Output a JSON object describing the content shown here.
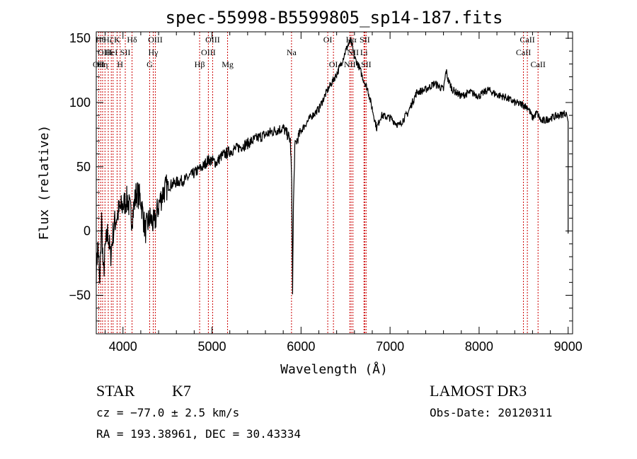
{
  "chart_data": {
    "type": "line",
    "title": "spec-55998-B5599805_sp14-187.fits",
    "xlabel": "Wavelength (Å)",
    "ylabel": "Flux (relative)",
    "xlim": [
      3700,
      9050
    ],
    "ylim": [
      -80,
      155
    ],
    "x_ticks": [
      4000,
      5000,
      6000,
      7000,
      8000,
      9000
    ],
    "y_ticks": [
      -50,
      0,
      50,
      100,
      150
    ],
    "grid": false,
    "series": [
      {
        "name": "flux",
        "x": [
          3700,
          3720,
          3740,
          3760,
          3780,
          3800,
          3830,
          3860,
          3900,
          3950,
          4000,
          4050,
          4100,
          4150,
          4200,
          4250,
          4300,
          4350,
          4400,
          4450,
          4500,
          4600,
          4700,
          4800,
          4850,
          4900,
          4950,
          5000,
          5050,
          5100,
          5200,
          5300,
          5400,
          5500,
          5600,
          5700,
          5800,
          5850,
          5880,
          5895,
          5905,
          5915,
          5930,
          5950,
          6000,
          6100,
          6200,
          6300,
          6400,
          6450,
          6500,
          6530,
          6560,
          6580,
          6600,
          6650,
          6700,
          6750,
          6800,
          6850,
          6900,
          7000,
          7100,
          7200,
          7300,
          7400,
          7500,
          7600,
          7630,
          7650,
          7700,
          7800,
          7900,
          8000,
          8100,
          8200,
          8300,
          8400,
          8500,
          8550,
          8600,
          8650,
          8700,
          8800,
          8900,
          8980,
          9000,
          9000
        ],
        "y": [
          -30,
          -10,
          -45,
          10,
          -35,
          -15,
          0,
          -20,
          5,
          15,
          20,
          25,
          10,
          30,
          25,
          0,
          10,
          5,
          20,
          30,
          35,
          38,
          40,
          45,
          48,
          50,
          55,
          55,
          53,
          58,
          62,
          65,
          68,
          72,
          75,
          78,
          80,
          75,
          70,
          40,
          -45,
          20,
          65,
          70,
          78,
          88,
          95,
          110,
          122,
          130,
          140,
          145,
          148,
          142,
          135,
          128,
          118,
          110,
          95,
          80,
          90,
          88,
          82,
          92,
          108,
          110,
          115,
          110,
          125,
          118,
          110,
          105,
          108,
          105,
          110,
          106,
          104,
          100,
          98,
          96,
          88,
          92,
          85,
          88,
          90,
          92,
          85,
          -2
        ]
      }
    ],
    "lines": [
      {
        "wl": 3727,
        "label": "OII",
        "row": 2
      },
      {
        "wl": 3750,
        "label": "Hθ",
        "row": 0
      },
      {
        "wl": 3771,
        "label": "Hη",
        "row": 2
      },
      {
        "wl": 3798,
        "label": "OIII",
        "row": 1
      },
      {
        "wl": 3835,
        "label": "Hζ",
        "row": 0
      },
      {
        "wl": 3869,
        "label": "HeI",
        "row": 1
      },
      {
        "wl": 3889,
        "label": "",
        "row": 0
      },
      {
        "wl": 3934,
        "label": "K",
        "row": 0
      },
      {
        "wl": 3968,
        "label": "H",
        "row": 2
      },
      {
        "wl": 4026,
        "label": "SII",
        "row": 1
      },
      {
        "wl": 4102,
        "label": "Hδ",
        "row": 0
      },
      {
        "wl": 4300,
        "label": "G",
        "row": 2
      },
      {
        "wl": 4340,
        "label": "Hγ",
        "row": 1
      },
      {
        "wl": 4363,
        "label": "OIII",
        "row": 0
      },
      {
        "wl": 4861,
        "label": "Hβ",
        "row": 2
      },
      {
        "wl": 4959,
        "label": "OIII",
        "row": 1
      },
      {
        "wl": 5007,
        "label": "OIII",
        "row": 0
      },
      {
        "wl": 5175,
        "label": "Mg",
        "row": 2
      },
      {
        "wl": 5893,
        "label": "Na",
        "row": 1
      },
      {
        "wl": 6300,
        "label": "OI",
        "row": 0
      },
      {
        "wl": 6364,
        "label": "OI",
        "row": 2
      },
      {
        "wl": 6548,
        "label": "NII",
        "row": 2
      },
      {
        "wl": 6563,
        "label": "Hα",
        "row": 0
      },
      {
        "wl": 6583,
        "label": "NII",
        "row": 1
      },
      {
        "wl": 6707,
        "label": "Li",
        "row": 1
      },
      {
        "wl": 6716,
        "label": "SII",
        "row": 0
      },
      {
        "wl": 6731,
        "label": "SII",
        "row": 2
      },
      {
        "wl": 8498,
        "label": "CaII",
        "row": 1
      },
      {
        "wl": 8542,
        "label": "CaII",
        "row": 0
      },
      {
        "wl": 8662,
        "label": "CaII",
        "row": 2
      }
    ]
  },
  "info": {
    "class": "STAR",
    "subclass": "K7",
    "survey": "LAMOST DR3",
    "cz": "cz = −77.0 ± 2.5 km/s",
    "obs_date": "Obs-Date: 20120311",
    "coords": "RA = 193.38961, DEC =  30.43334"
  }
}
